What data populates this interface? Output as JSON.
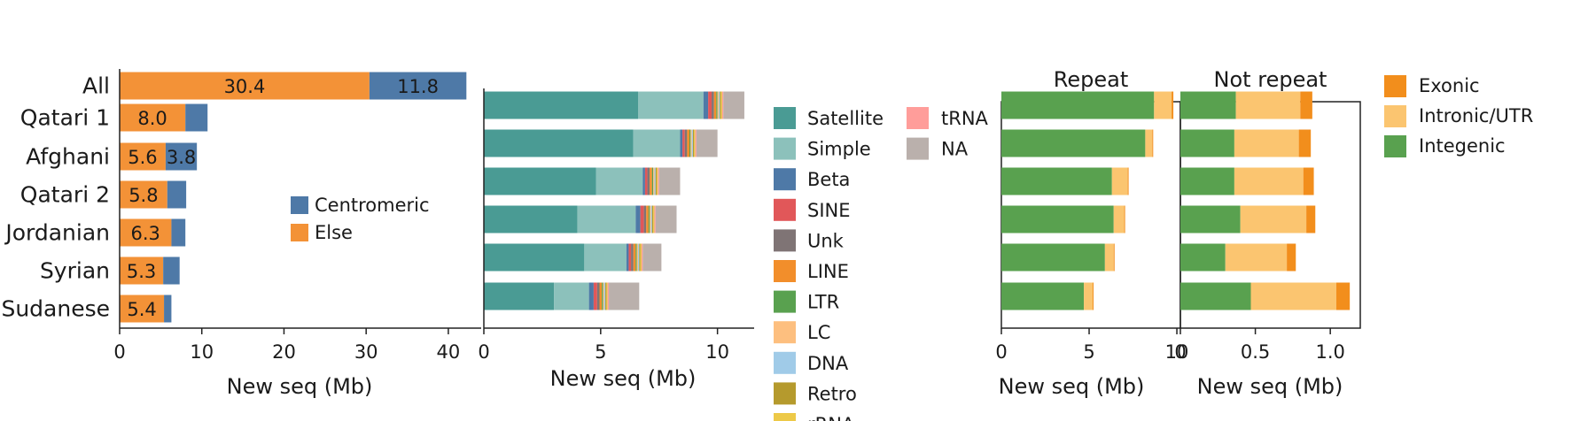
{
  "colors": {
    "orange": "#F39237",
    "blue": "#4E79A7",
    "satellite": "#4A9B94",
    "simple": "#8CC1BB",
    "beta": "#4E79A7",
    "sine": "#E15759",
    "unk": "#7F7475",
    "line": "#F28E2B",
    "ltr": "#59A14F",
    "lc": "#FDBF7F",
    "dna": "#A0CBE8",
    "retro": "#B59A2D",
    "rrna": "#EDC948",
    "trna": "#FF9D9A",
    "na": "#BAB0AC",
    "exonic": "#F28E1C",
    "intronic": "#FBC570",
    "intergenic": "#59A14F"
  },
  "chart_data": [
    {
      "type": "bar",
      "orientation": "horizontal",
      "stacked": true,
      "categories": [
        "All",
        "Qatari 1",
        "Afghani",
        "Qatari 2",
        "Jordanian",
        "Syrian",
        "Sudanese"
      ],
      "series": [
        {
          "name": "Else",
          "color_key": "orange",
          "values": [
            30.4,
            8.0,
            5.6,
            5.8,
            6.3,
            5.3,
            5.4
          ],
          "labels": [
            "30.4",
            "8.0",
            "5.6",
            "5.8",
            "6.3",
            "5.3",
            "5.4"
          ]
        },
        {
          "name": "Centromeric",
          "color_key": "blue",
          "values": [
            11.8,
            2.7,
            3.8,
            2.3,
            1.7,
            2.0,
            0.9
          ],
          "labels": [
            "11.8",
            "",
            "3.8",
            "",
            "",
            "",
            ""
          ]
        }
      ],
      "legend": [
        "Centromeric",
        "Else"
      ],
      "legend_placement": "center-right",
      "xlabel": "New seq (Mb)",
      "xticks": [
        "0",
        "10",
        "20",
        "30",
        "40"
      ],
      "xlim": [
        0,
        44
      ]
    },
    {
      "type": "bar",
      "orientation": "horizontal",
      "stacked": true,
      "categories": [
        "Qatari 1",
        "Afghani",
        "Qatari 2",
        "Jordanian",
        "Syrian",
        "Sudanese"
      ],
      "series": [
        {
          "name": "Satellite",
          "color_key": "satellite",
          "values": [
            6.6,
            6.4,
            4.8,
            4.0,
            4.3,
            3.0
          ]
        },
        {
          "name": "Simple",
          "color_key": "simple",
          "values": [
            2.8,
            2.0,
            2.0,
            2.5,
            1.8,
            1.5
          ]
        },
        {
          "name": "Beta",
          "color_key": "beta",
          "values": [
            0.2,
            0.1,
            0.1,
            0.2,
            0.1,
            0.2
          ]
        },
        {
          "name": "SINE",
          "color_key": "sine",
          "values": [
            0.15,
            0.1,
            0.1,
            0.15,
            0.1,
            0.15
          ]
        },
        {
          "name": "Unk",
          "color_key": "unk",
          "values": [
            0.1,
            0.1,
            0.1,
            0.1,
            0.1,
            0.1
          ]
        },
        {
          "name": "LINE",
          "color_key": "line",
          "values": [
            0.1,
            0.1,
            0.1,
            0.1,
            0.1,
            0.1
          ]
        },
        {
          "name": "LTR",
          "color_key": "ltr",
          "values": [
            0.05,
            0.05,
            0.05,
            0.05,
            0.05,
            0.05
          ]
        },
        {
          "name": "LC",
          "color_key": "lc",
          "values": [
            0.05,
            0.05,
            0.05,
            0.05,
            0.05,
            0.05
          ]
        },
        {
          "name": "DNA",
          "color_key": "dna",
          "values": [
            0.05,
            0.05,
            0.05,
            0.05,
            0.05,
            0.05
          ]
        },
        {
          "name": "Retro",
          "color_key": "retro",
          "values": [
            0.05,
            0.05,
            0.05,
            0.05,
            0.05,
            0.05
          ]
        },
        {
          "name": "rRNA",
          "color_key": "rrna",
          "values": [
            0.05,
            0.05,
            0.05,
            0.05,
            0.05,
            0.05
          ]
        },
        {
          "name": "tRNA",
          "color_key": "trna",
          "values": [
            0.05,
            0.05,
            0.05,
            0.05,
            0.05,
            0.05
          ]
        },
        {
          "name": "NA",
          "color_key": "na",
          "values": [
            0.9,
            0.9,
            0.9,
            0.9,
            0.8,
            1.3
          ]
        }
      ],
      "legend": [
        "Satellite",
        "Simple",
        "Beta",
        "SINE",
        "Unk",
        "LINE",
        "LTR",
        "LC",
        "DNA",
        "Retro",
        "rRNA",
        "tRNA",
        "NA"
      ],
      "xlabel": "New seq (Mb)",
      "xticks": [
        "0",
        "5",
        "10"
      ],
      "xlim": [
        0,
        11
      ]
    },
    {
      "type": "bar",
      "orientation": "horizontal",
      "stacked": true,
      "title": "Repeat",
      "categories": [
        "Qatari 1",
        "Afghani",
        "Qatari 2",
        "Jordanian",
        "Syrian",
        "Sudanese"
      ],
      "series": [
        {
          "name": "Integenic",
          "color_key": "intergenic",
          "values": [
            8.7,
            8.2,
            6.3,
            6.4,
            5.9,
            4.7
          ]
        },
        {
          "name": "Intronic/UTR",
          "color_key": "intronic",
          "values": [
            1.0,
            0.4,
            0.9,
            0.6,
            0.5,
            0.5
          ]
        },
        {
          "name": "Exonic",
          "color_key": "exonic",
          "values": [
            0.1,
            0.05,
            0.05,
            0.05,
            0.05,
            0.05
          ]
        }
      ],
      "xlabel": "New seq (Mb)",
      "xticks": [
        "0",
        "5",
        "10"
      ],
      "xlim": [
        0,
        10.2
      ]
    },
    {
      "type": "bar",
      "orientation": "horizontal",
      "stacked": true,
      "title": "Not repeat",
      "categories": [
        "Qatari 1",
        "Afghani",
        "Qatari 2",
        "Jordanian",
        "Syrian",
        "Sudanese"
      ],
      "series": [
        {
          "name": "Integenic",
          "color_key": "intergenic",
          "values": [
            0.37,
            0.36,
            0.36,
            0.4,
            0.3,
            0.47
          ]
        },
        {
          "name": "Intronic/UTR",
          "color_key": "intronic",
          "values": [
            0.43,
            0.43,
            0.46,
            0.44,
            0.41,
            0.57
          ]
        },
        {
          "name": "Exonic",
          "color_key": "exonic",
          "values": [
            0.08,
            0.08,
            0.07,
            0.06,
            0.06,
            0.09
          ]
        }
      ],
      "xlabel": "New seq (Mb)",
      "xticks": [
        "0",
        "0.5",
        "1.0"
      ],
      "xlim": [
        0,
        1.2
      ]
    }
  ],
  "legend3": [
    "Exonic",
    "Intronic/UTR",
    "Integenic"
  ]
}
